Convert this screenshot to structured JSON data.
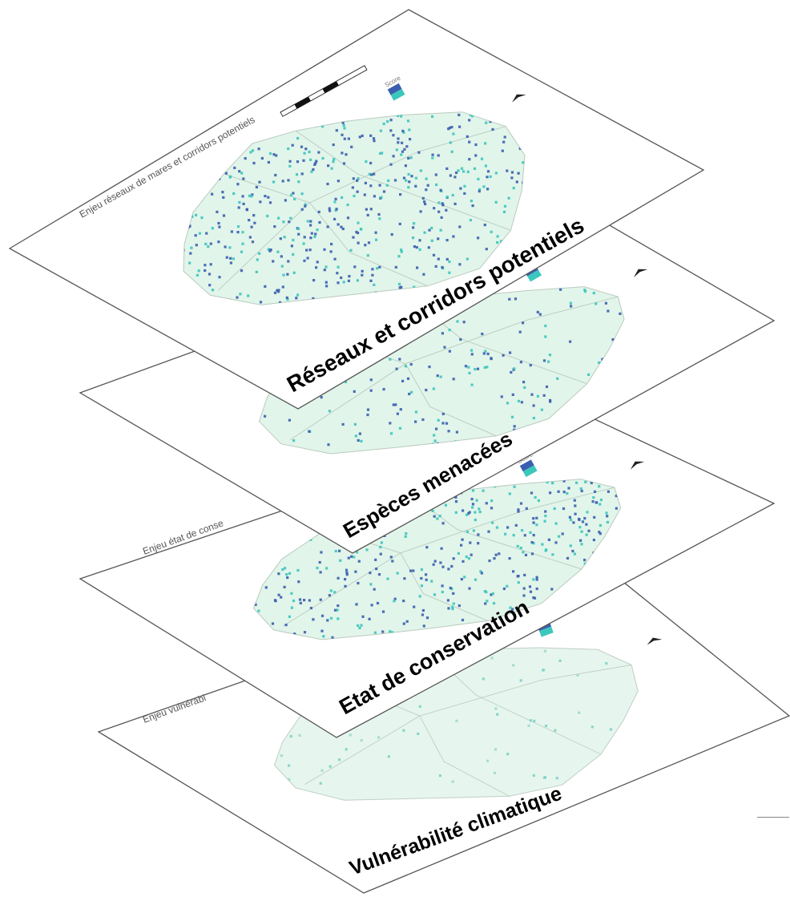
{
  "layers": [
    {
      "id": "vulnerabilite",
      "label": "Vulnérabilité climatique",
      "map_title": "Enjeu vulnérabi",
      "theme": {
        "fill": "#e6f6ee",
        "border": "#bfcfc6",
        "dot_primary": "#7fd1c8",
        "dot_secondary": "#9ed9cf"
      },
      "density": "low"
    },
    {
      "id": "conservation",
      "label": "Etat de conservation",
      "map_title": "Enjeu état de conse",
      "theme": {
        "fill": "#e2f5ea",
        "border": "#bacbbf",
        "dot_primary": "#3b5fb0",
        "dot_secondary": "#3cc7bd"
      },
      "density": "high"
    },
    {
      "id": "especes",
      "label": "Espèces menacées",
      "map_title": "",
      "theme": {
        "fill": "#e2f5ea",
        "border": "#bacbbf",
        "dot_primary": "#3b5fb0",
        "dot_secondary": "#3cc7bd"
      },
      "density": "medium"
    },
    {
      "id": "reseaux",
      "label": "Réseaux et corridors potentiels",
      "map_title": "Enjeu réseaux de mares et corridors potentiels",
      "theme": {
        "fill": "#e2f5ea",
        "border": "#bacbbf",
        "dot_primary": "#3b5fb0",
        "dot_secondary": "#3cc7bd"
      },
      "density": "very-high"
    }
  ],
  "legend": {
    "title": "Score",
    "swatch_dark": "#3b5fb0",
    "swatch_light": "#3cc7bd"
  },
  "north_arrow_icon": "north-arrow-icon",
  "scale_bar_icon": "scale-bar-icon"
}
